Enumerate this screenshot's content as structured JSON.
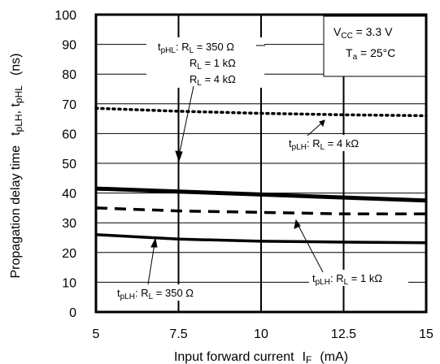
{
  "chart_data": {
    "type": "line",
    "xlabel": {
      "main": "Input forward current",
      "sym": "I",
      "sub": "F",
      "unit": "(mA)"
    },
    "ylabel": {
      "main": "Propagation delay time",
      "s1": "t",
      "s1sub": "pLH",
      "sep": ", ",
      "s2": "t",
      "s2sub": "pHL",
      "unit": "(ns)"
    },
    "xlim": [
      5,
      15
    ],
    "ylim": [
      0,
      100
    ],
    "xticks": [
      "5",
      "7.5",
      "10",
      "12.5",
      "15"
    ],
    "yticks": [
      "0",
      "10",
      "20",
      "30",
      "40",
      "50",
      "60",
      "70",
      "80",
      "90",
      "100"
    ],
    "grid": true,
    "conditions": {
      "vcc": {
        "sym": "V",
        "sub": "CC",
        "rest": " = 3.3 V"
      },
      "ta": {
        "sym": "T",
        "sub": "a",
        "rest": " = 25°C"
      }
    },
    "series": [
      {
        "id": "phl",
        "label": "tpHL: RL = 350 Ω / 1 kΩ / 4 kΩ",
        "style": "solid-thick",
        "x": [
          5,
          7.5,
          10,
          12.5,
          15
        ],
        "y": [
          41.5,
          40.5,
          39.5,
          38.5,
          37.5
        ]
      },
      {
        "id": "plh4k",
        "label": "tpLH: RL = 4 kΩ",
        "style": "dotted",
        "x": [
          5,
          7.5,
          10,
          12.5,
          15
        ],
        "y": [
          68.5,
          67.5,
          66.8,
          66.3,
          66
        ]
      },
      {
        "id": "plh1k",
        "label": "tpLH: RL = 1 kΩ",
        "style": "dashed",
        "x": [
          5,
          7.5,
          10,
          12.5,
          15
        ],
        "y": [
          35,
          34,
          33.5,
          33,
          33
        ]
      },
      {
        "id": "plh350",
        "label": "tpLH: RL = 350 Ω",
        "style": "solid",
        "x": [
          5,
          7.5,
          10,
          12.5,
          15
        ],
        "y": [
          26,
          24.5,
          23.8,
          23.5,
          23.3
        ]
      }
    ],
    "annotations": {
      "phl_a": {
        "t": "t",
        "ts": "pHL",
        "pre": ": R",
        "rs": "L",
        "val": " = 350 Ω"
      },
      "phl_b": {
        "r": "R",
        "rs": "L",
        "val": " = 1 kΩ"
      },
      "phl_c": {
        "r": "R",
        "rs": "L",
        "val": " = 4 kΩ"
      },
      "plh4k": {
        "t": "t",
        "ts": "pLH",
        "pre": ": R",
        "rs": "L",
        "val": " = 4 kΩ"
      },
      "plh1k": {
        "t": "t",
        "ts": "pLH",
        "pre": ": R",
        "rs": "L",
        "val": " = 1 kΩ"
      },
      "plh350": {
        "t": "t",
        "ts": "pLH",
        "pre": ": R",
        "rs": "L",
        "val": " = 350 Ω"
      }
    }
  }
}
